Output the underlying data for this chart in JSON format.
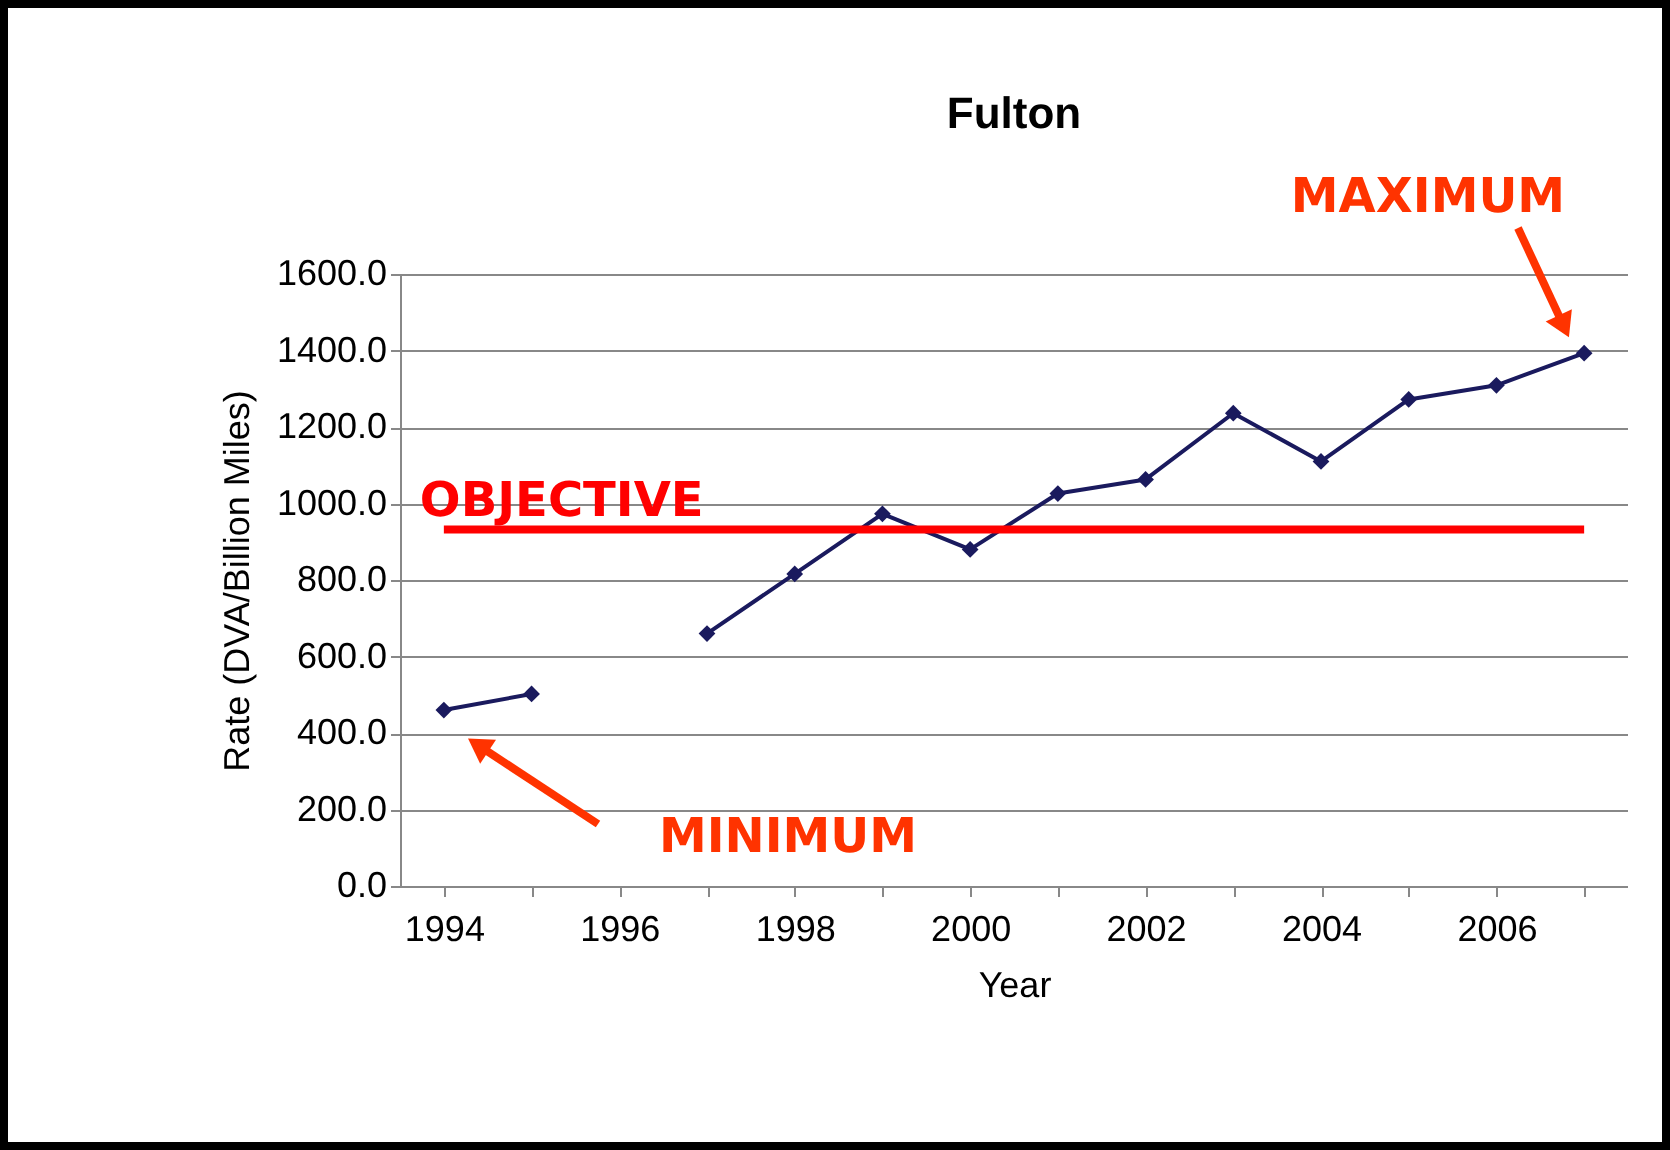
{
  "chart_data": {
    "type": "line",
    "title": "Fulton",
    "xlabel": "Year",
    "ylabel": "Rate (DVA/Billion Miles)",
    "categories": [
      "1994",
      null,
      "1996",
      null,
      "1998",
      null,
      "2000",
      null,
      "2002",
      null,
      "2004",
      null,
      "2006",
      null
    ],
    "series": [
      {
        "color": "#1a1a5e",
        "values": [
          460,
          502,
          null,
          660,
          816,
          973,
          880,
          1026,
          1063,
          1236,
          1110,
          1272,
          1309,
          1393
        ]
      }
    ],
    "ylim": [
      0,
      1600
    ],
    "yticks": [
      {
        "value": 0,
        "label": "0.0"
      },
      {
        "value": 200,
        "label": "200.0"
      },
      {
        "value": 400,
        "label": "400.0"
      },
      {
        "value": 600,
        "label": "600.0"
      },
      {
        "value": 800,
        "label": "800.0"
      },
      {
        "value": 1000,
        "label": "1000.0"
      },
      {
        "value": 1200,
        "label": "1200.0"
      },
      {
        "value": 1400,
        "label": "1400.0"
      },
      {
        "value": 1600,
        "label": "1600.0"
      }
    ],
    "ref_lines": [
      {
        "axis": "y",
        "value": 932,
        "label": "OBJECTIVE",
        "color": "#ff0000"
      }
    ],
    "annotations": [
      "MAXIMUM",
      "MINIMUM"
    ],
    "grid": "y",
    "marker": "diamond"
  }
}
